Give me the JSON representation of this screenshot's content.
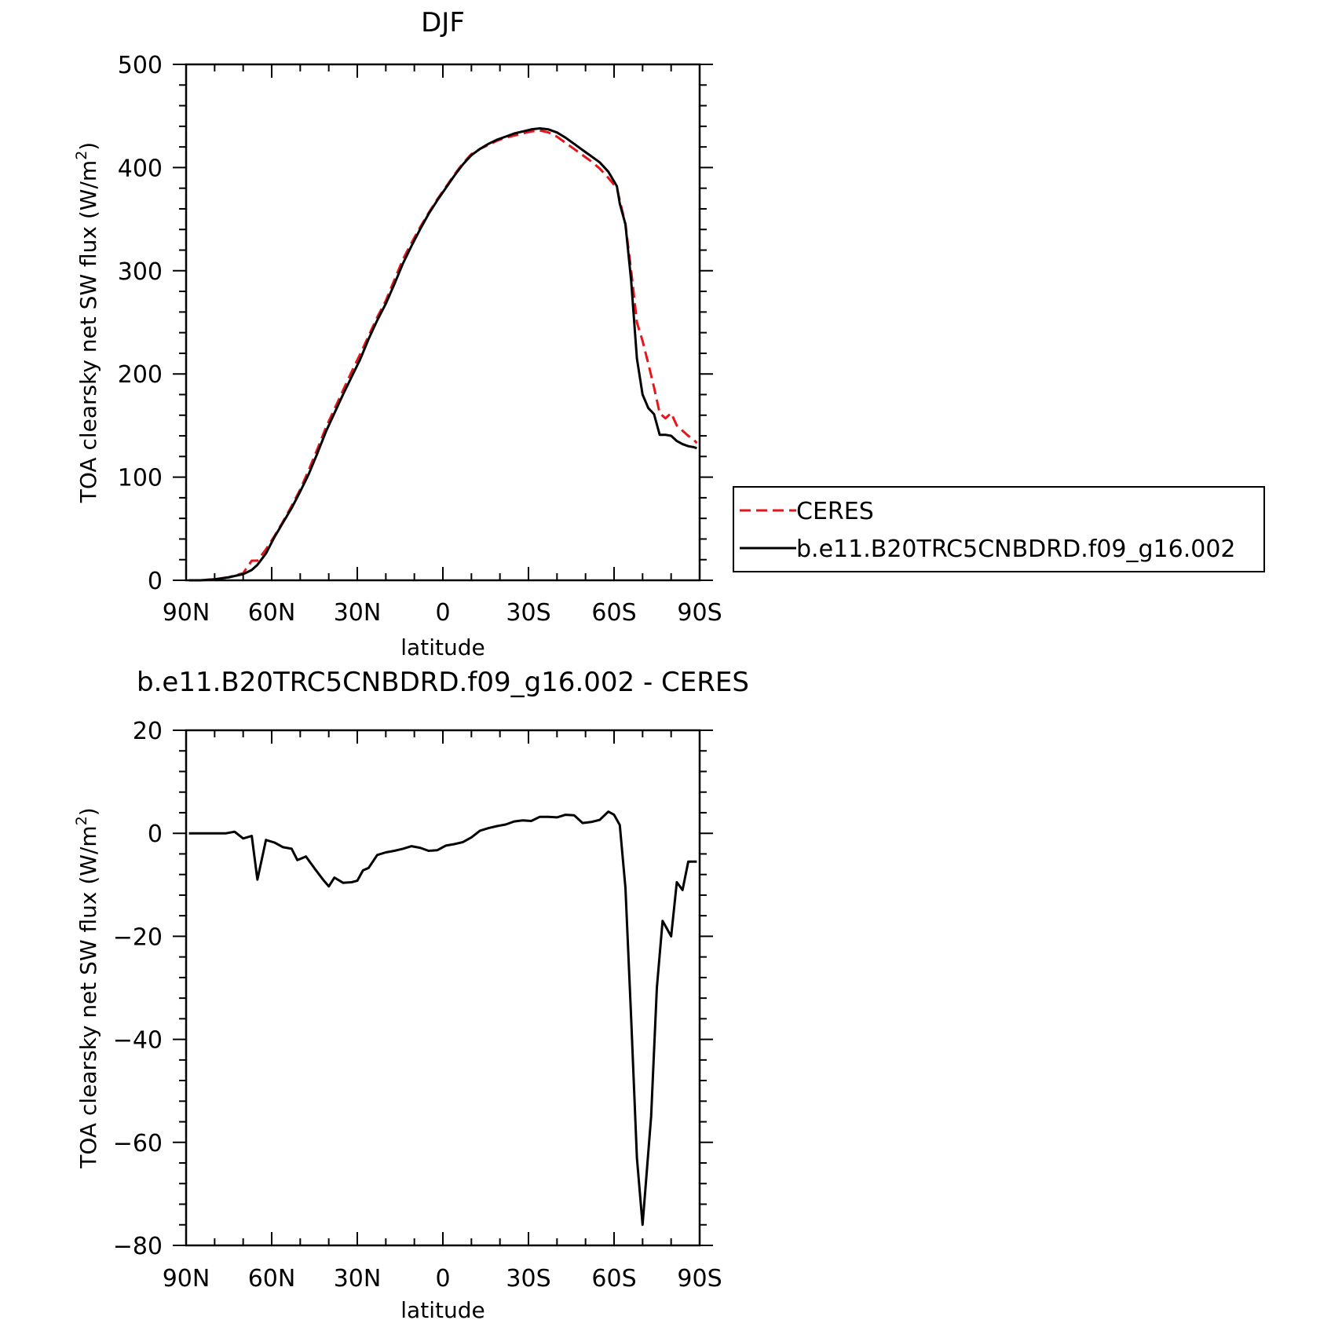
{
  "chart_data": [
    {
      "type": "line",
      "title": "DJF",
      "xlabel": "latitude",
      "ylabel_main": "TOA clearsky net SW flux (W/m",
      "ylabel_sup": "2",
      "ylabel_close": ")",
      "x_ticks": [
        {
          "value": 90,
          "label": "90N"
        },
        {
          "value": 60,
          "label": "60N"
        },
        {
          "value": 30,
          "label": "30N"
        },
        {
          "value": 0,
          "label": "0"
        },
        {
          "value": -30,
          "label": "30S"
        },
        {
          "value": -60,
          "label": "60S"
        },
        {
          "value": -90,
          "label": "90S"
        }
      ],
      "xlim": [
        90,
        -90
      ],
      "ylim": [
        0,
        500
      ],
      "y_ticks": [
        0,
        100,
        200,
        300,
        400,
        500
      ],
      "y_minor_step": 20,
      "x_minor_step": 10,
      "grid": false,
      "legend": {
        "position": "right"
      },
      "series": [
        {
          "name": "CERES",
          "color": "#e8141b",
          "dash": "dashed",
          "x": [
            89,
            85,
            80,
            75,
            70,
            67,
            65,
            62,
            59,
            56,
            53,
            50,
            47,
            44,
            41,
            38,
            35,
            32,
            29,
            26,
            23,
            20,
            17,
            14,
            11,
            8,
            5,
            2,
            -1,
            -4,
            -7,
            -10,
            -13,
            -16,
            -19,
            -22,
            -25,
            -28,
            -31,
            -34,
            -37,
            -40,
            -43,
            -46,
            -49,
            -52,
            -55,
            -58,
            -61,
            -64,
            -66,
            -68,
            -70,
            -72,
            -74,
            -76,
            -78,
            -80,
            -82,
            -84,
            -86,
            -88,
            -89
          ],
          "y": [
            0,
            0,
            1,
            3,
            7,
            19,
            19,
            30,
            43,
            57,
            72,
            88,
            107,
            127,
            148,
            166,
            184,
            202,
            219,
            237,
            255,
            271,
            291,
            311,
            327,
            342,
            356,
            369,
            381,
            393,
            404,
            413,
            418,
            422,
            426,
            429,
            431,
            433,
            435,
            436,
            434,
            430,
            424,
            418,
            412,
            406,
            399,
            390,
            380,
            345,
            300,
            250,
            232,
            210,
            187,
            162,
            157,
            162,
            150,
            145,
            140,
            136,
            133
          ]
        },
        {
          "name": "b.e11.B20TRC5CNBDRD.f09_g16.002",
          "color": "#000000",
          "dash": "solid",
          "x": [
            89,
            85,
            80,
            75,
            70,
            67,
            65,
            62,
            59,
            56,
            53,
            50,
            47,
            44,
            41,
            38,
            35,
            32,
            29,
            26,
            23,
            20,
            17,
            14,
            11,
            8,
            5,
            2,
            -1,
            -4,
            -7,
            -10,
            -13,
            -16,
            -19,
            -22,
            -25,
            -28,
            -31,
            -34,
            -37,
            -40,
            -43,
            -46,
            -49,
            -52,
            -55,
            -58,
            -61,
            -62,
            -64,
            -66,
            -68,
            -70,
            -72,
            -74,
            -76,
            -78,
            -80,
            -82,
            -84,
            -86,
            -88,
            -89
          ],
          "y": [
            0,
            0,
            1,
            3,
            6,
            10,
            15,
            26,
            42,
            56,
            70,
            86,
            103,
            123,
            144,
            162,
            180,
            197,
            214,
            234,
            252,
            268,
            287,
            307,
            324,
            340,
            355,
            368,
            380,
            392,
            403,
            412,
            418,
            423,
            427,
            430,
            433,
            435,
            437,
            438,
            437,
            434,
            429,
            423,
            417,
            411,
            405,
            396,
            382,
            365,
            345,
            290,
            215,
            180,
            167,
            161,
            141,
            141,
            140,
            135,
            132,
            130,
            129,
            128
          ]
        }
      ]
    },
    {
      "type": "line",
      "title": "b.e11.B20TRC5CNBDRD.f09_g16.002 - CERES",
      "xlabel": "latitude",
      "ylabel_main": "TOA clearsky net SW flux (W/m",
      "ylabel_sup": "2",
      "ylabel_close": ")",
      "x_ticks": [
        {
          "value": 90,
          "label": "90N"
        },
        {
          "value": 60,
          "label": "60N"
        },
        {
          "value": 30,
          "label": "30N"
        },
        {
          "value": 0,
          "label": "0"
        },
        {
          "value": -30,
          "label": "30S"
        },
        {
          "value": -60,
          "label": "60S"
        },
        {
          "value": -90,
          "label": "90S"
        }
      ],
      "xlim": [
        90,
        -90
      ],
      "ylim": [
        -80,
        20
      ],
      "y_ticks": [
        -80,
        -60,
        -40,
        -20,
        0,
        20
      ],
      "y_tick_labels": [
        "−80",
        "−60",
        "−40",
        "−20",
        "0",
        "20"
      ],
      "y_minor_step": 4,
      "x_minor_step": 10,
      "grid": false,
      "series": [
        {
          "name": "",
          "color": "#000000",
          "dash": "solid",
          "x": [
            89,
            85,
            80,
            76,
            73,
            70,
            67,
            65,
            62,
            59,
            56,
            53,
            51,
            48,
            45,
            42,
            40,
            38,
            35,
            32,
            30,
            28,
            26,
            23,
            20,
            17,
            14,
            11,
            8,
            5,
            2,
            -1,
            -4,
            -7,
            -10,
            -13,
            -16,
            -19,
            -22,
            -25,
            -28,
            -31,
            -34,
            -37,
            -40,
            -43,
            -46,
            -49,
            -52,
            -55,
            -58,
            -60,
            -62,
            -64,
            -66,
            -68,
            -70,
            -73,
            -75,
            -77,
            -80,
            -82,
            -84,
            -86,
            -89
          ],
          "y": [
            0,
            0,
            0,
            0,
            0.3,
            -1,
            -0.5,
            -9,
            -1.3,
            -1.8,
            -2.7,
            -3,
            -5.2,
            -4.5,
            -6.8,
            -9,
            -10.3,
            -8.6,
            -9.6,
            -9.5,
            -9.2,
            -7.2,
            -6.7,
            -4.2,
            -3.7,
            -3.4,
            -3,
            -2.5,
            -2.8,
            -3.4,
            -3.3,
            -2.4,
            -2.1,
            -1.7,
            -0.8,
            0.5,
            1,
            1.4,
            1.7,
            2.3,
            2.5,
            2.4,
            3.2,
            3.2,
            3.1,
            3.6,
            3.5,
            2,
            2.2,
            2.6,
            4.2,
            3.6,
            1.6,
            -10.6,
            -36,
            -63,
            -76,
            -55,
            -30,
            -17,
            -20,
            -9.5,
            -11,
            -5.5,
            -5.5
          ]
        }
      ]
    }
  ]
}
